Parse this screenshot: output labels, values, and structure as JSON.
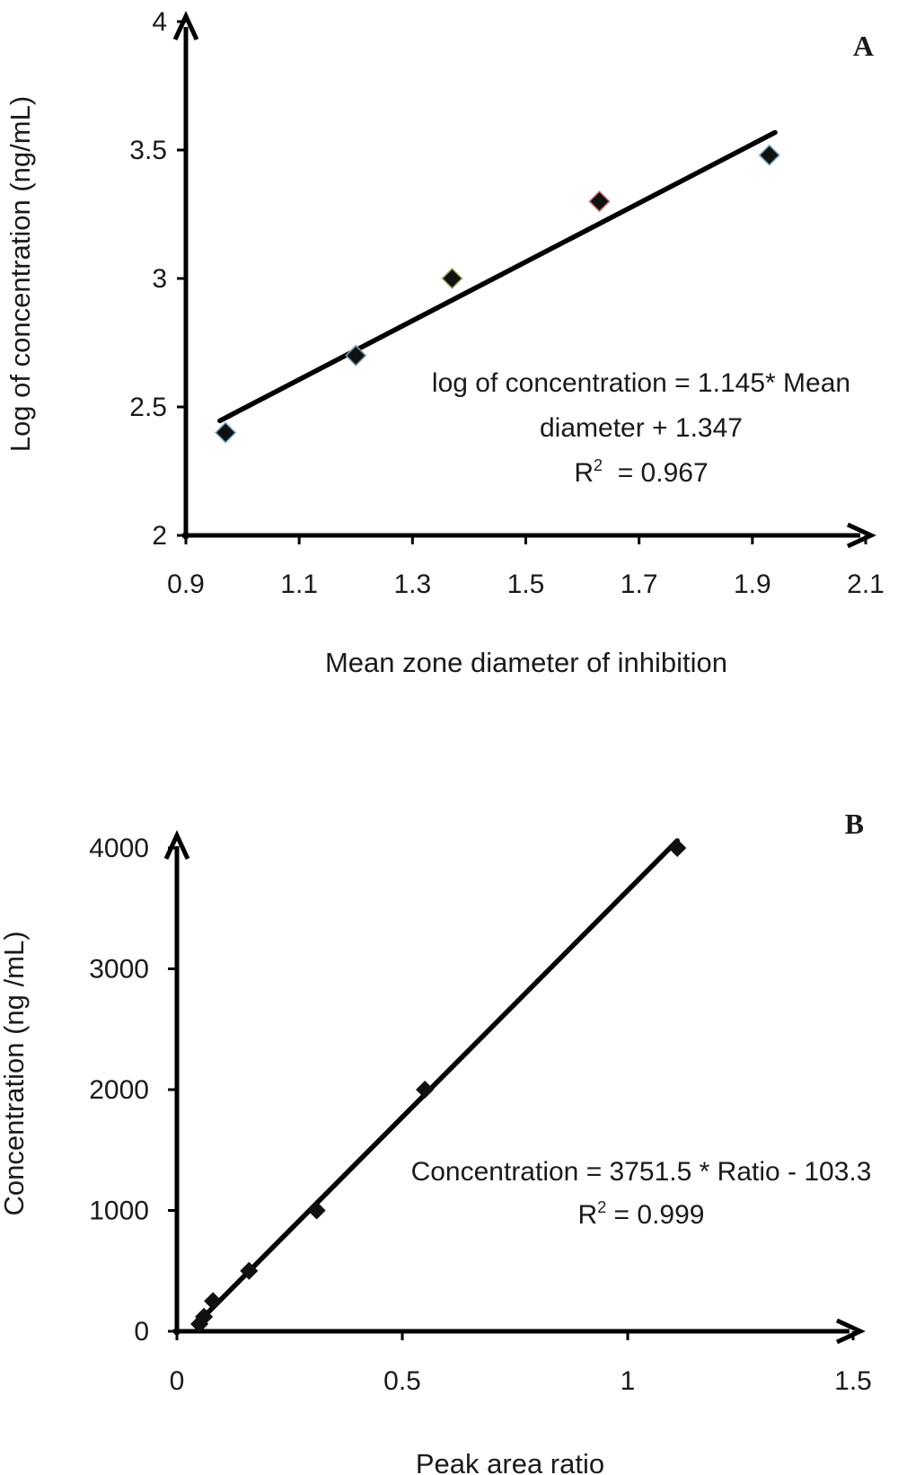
{
  "chart_data": [
    {
      "type": "scatter",
      "panel_label": "A",
      "xlabel": "Mean zone diameter of inhibition",
      "ylabel": "Log of concentration (ng/mL)",
      "xlim": [
        0.9,
        2.1
      ],
      "ylim": [
        2,
        4
      ],
      "x_ticks": [
        0.9,
        1.1,
        1.3,
        1.5,
        1.7,
        1.9,
        2.1
      ],
      "x_tick_labels": [
        "0.9",
        "1.1",
        "1.3",
        "1.5",
        "1.7",
        "1.9",
        "2.1"
      ],
      "y_ticks": [
        2,
        2.5,
        3,
        3.5,
        4
      ],
      "y_tick_labels": [
        "2",
        "2.5",
        "3",
        "3.5",
        "4"
      ],
      "points": [
        {
          "x": 0.97,
          "y": 2.4
        },
        {
          "x": 1.2,
          "y": 2.7
        },
        {
          "x": 1.37,
          "y": 3.0
        },
        {
          "x": 1.63,
          "y": 3.3
        },
        {
          "x": 1.93,
          "y": 3.48
        }
      ],
      "point_colors": [
        "#111111",
        "#111111",
        "#111111",
        "#111111",
        "#111111"
      ],
      "point_edge_colors": [
        "#6fa8c8",
        "#7aa0b8",
        "#9aaa66",
        "#c06a6a",
        "#6fa8c8"
      ],
      "fit": {
        "slope": 1.145,
        "intercept": 1.347,
        "x_range": [
          0.96,
          1.94
        ]
      },
      "equation_lines": [
        "log of concentration = 1.145* Mean",
        "diameter + 1.347"
      ],
      "r2_prefix": "R",
      "r2_sup": "2",
      "r2_value": "  = 0.967",
      "grid": false,
      "legend": "none"
    },
    {
      "type": "scatter",
      "panel_label": "B",
      "xlabel": "Peak area ratio",
      "ylabel": "Concentration (ng /mL)",
      "xlim": [
        0,
        1.5
      ],
      "ylim": [
        0,
        4000
      ],
      "x_ticks": [
        0,
        0.5,
        1,
        1.5
      ],
      "x_tick_labels": [
        "0",
        "0.5",
        "1",
        "1.5"
      ],
      "y_ticks": [
        0,
        1000,
        2000,
        3000,
        4000
      ],
      "y_tick_labels": [
        "0",
        "1000",
        "2000",
        "3000",
        "4000"
      ],
      "points": [
        {
          "x": 0.05,
          "y": 60
        },
        {
          "x": 0.06,
          "y": 120
        },
        {
          "x": 0.08,
          "y": 250
        },
        {
          "x": 0.16,
          "y": 500
        },
        {
          "x": 0.31,
          "y": 1000
        },
        {
          "x": 0.55,
          "y": 2000
        },
        {
          "x": 1.11,
          "y": 4000
        }
      ],
      "point_colors": [
        "#111111",
        "#111111",
        "#111111",
        "#111111",
        "#111111",
        "#111111",
        "#111111"
      ],
      "fit": {
        "slope": 3751.5,
        "intercept": -103.3,
        "x_range": [
          0.045,
          1.11
        ]
      },
      "equation_lines": [
        "Concentration = 3751.5 * Ratio - 103.3"
      ],
      "r2_prefix": "R",
      "r2_sup": "2",
      "r2_value": " = 0.999",
      "grid": false,
      "legend": "none"
    }
  ]
}
